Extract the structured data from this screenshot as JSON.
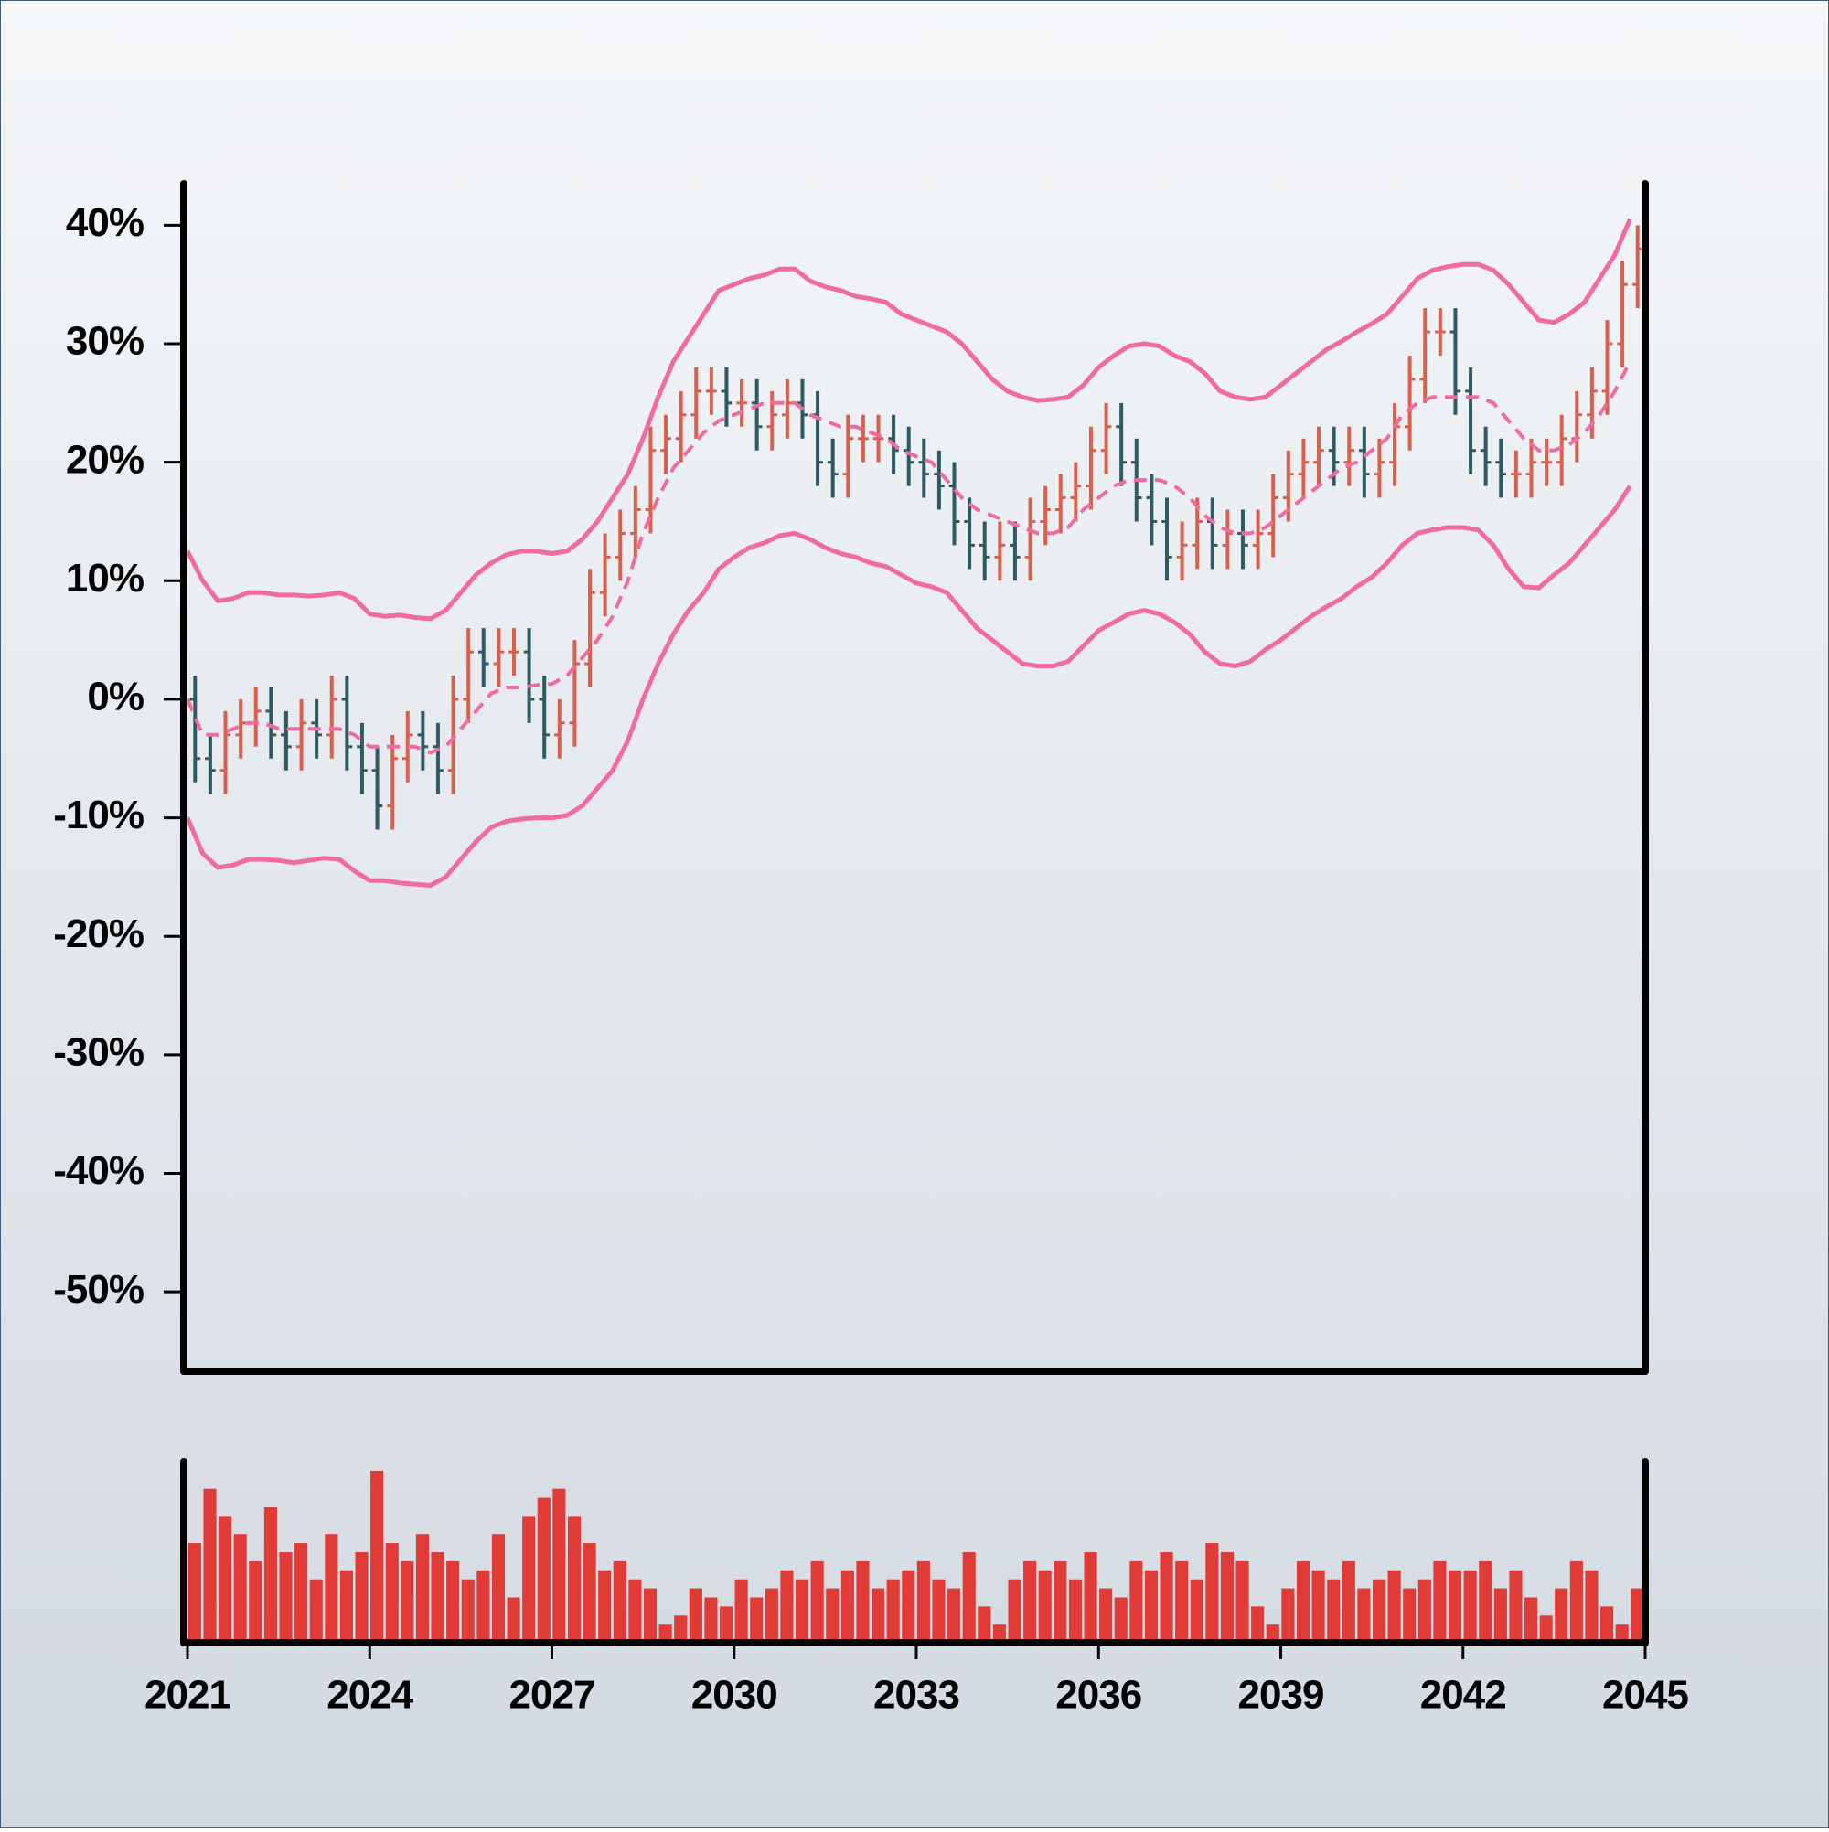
{
  "chart_data": {
    "type": "ohlc",
    "xlim": [
      2021,
      2045
    ],
    "xticks": [
      2021,
      2024,
      2027,
      2030,
      2033,
      2036,
      2039,
      2042,
      2045
    ],
    "ylim": [
      -56.7,
      43.5
    ],
    "yticks": [
      {
        "value": 40,
        "label": "40%"
      },
      {
        "value": 30,
        "label": "30%"
      },
      {
        "value": 20,
        "label": "20%"
      },
      {
        "value": 10,
        "label": "10%"
      },
      {
        "value": 0,
        "label": "0%"
      },
      {
        "value": -10,
        "label": "-10%"
      },
      {
        "value": -20,
        "label": "-20%"
      },
      {
        "value": -30,
        "label": "-30%"
      },
      {
        "value": -40,
        "label": "-40%"
      },
      {
        "value": -50,
        "label": "-50%"
      }
    ],
    "up_color": "#d9604f",
    "down_color": "#2f5a63",
    "band_color": "#f06ba0",
    "x": [
      2021,
      2021.25,
      2021.5,
      2021.75,
      2022,
      2022.25,
      2022.5,
      2022.75,
      2023,
      2023.25,
      2023.5,
      2023.75,
      2024,
      2024.25,
      2024.5,
      2024.75,
      2025,
      2025.25,
      2025.5,
      2025.75,
      2026,
      2026.25,
      2026.5,
      2026.75,
      2027,
      2027.25,
      2027.5,
      2027.75,
      2028,
      2028.25,
      2028.5,
      2028.75,
      2029,
      2029.25,
      2029.5,
      2029.75,
      2030,
      2030.25,
      2030.5,
      2030.75,
      2031,
      2031.25,
      2031.5,
      2031.75,
      2032,
      2032.25,
      2032.5,
      2032.75,
      2033,
      2033.25,
      2033.5,
      2033.75,
      2034,
      2034.25,
      2034.5,
      2034.75,
      2035,
      2035.25,
      2035.5,
      2035.75,
      2036,
      2036.25,
      2036.5,
      2036.75,
      2037,
      2037.25,
      2037.5,
      2037.75,
      2038,
      2038.25,
      2038.5,
      2038.75,
      2039,
      2039.25,
      2039.5,
      2039.75,
      2040,
      2040.25,
      2040.5,
      2040.75,
      2041,
      2041.25,
      2041.5,
      2041.75,
      2042,
      2042.25,
      2042.5,
      2042.75,
      2043,
      2043.25,
      2043.5,
      2043.75,
      2044,
      2044.25,
      2044.5,
      2044.75
    ],
    "open": [
      0,
      -5,
      -6,
      -3,
      -2,
      -1,
      -3,
      -4,
      -2,
      -3,
      0,
      -4,
      -6,
      -9,
      -5,
      -3,
      -4,
      -6,
      0,
      4,
      3,
      4,
      4,
      0,
      -3,
      -2,
      3,
      9,
      12,
      14,
      16,
      21,
      22,
      24,
      26,
      26,
      25,
      25,
      23,
      24,
      25,
      24,
      20,
      19,
      22,
      22,
      22,
      21,
      20,
      19,
      18,
      15,
      13,
      12,
      13,
      12,
      15,
      16,
      17,
      18,
      21,
      23,
      20,
      17,
      15,
      12,
      13,
      15,
      13,
      14,
      13,
      14,
      17,
      19,
      20,
      21,
      20,
      21,
      19,
      20,
      23,
      27,
      31,
      31,
      26,
      21,
      20,
      19,
      19,
      20,
      20,
      22,
      24,
      26,
      30,
      35
    ],
    "high": [
      2,
      -3,
      -1,
      0,
      1,
      1,
      -1,
      0,
      0,
      2,
      2,
      -2,
      -4,
      -3,
      -1,
      -1,
      -2,
      2,
      6,
      6,
      6,
      6,
      6,
      2,
      0,
      5,
      11,
      14,
      16,
      18,
      23,
      24,
      26,
      28,
      28,
      28,
      27,
      27,
      26,
      27,
      27,
      26,
      22,
      24,
      24,
      24,
      24,
      23,
      22,
      21,
      20,
      17,
      15,
      15,
      15,
      17,
      18,
      19,
      20,
      23,
      25,
      25,
      22,
      19,
      17,
      15,
      17,
      17,
      16,
      16,
      16,
      19,
      21,
      22,
      23,
      23,
      23,
      23,
      22,
      25,
      29,
      33,
      33,
      33,
      28,
      23,
      22,
      21,
      22,
      22,
      24,
      26,
      28,
      32,
      37,
      40
    ],
    "low": [
      -7,
      -8,
      -8,
      -5,
      -4,
      -5,
      -6,
      -6,
      -5,
      -5,
      -6,
      -8,
      -11,
      -11,
      -7,
      -6,
      -8,
      -8,
      -2,
      1,
      1,
      2,
      -2,
      -5,
      -5,
      -4,
      1,
      7,
      10,
      12,
      14,
      19,
      20,
      22,
      24,
      23,
      23,
      21,
      21,
      22,
      22,
      18,
      17,
      17,
      20,
      20,
      19,
      18,
      17,
      16,
      13,
      11,
      10,
      10,
      10,
      10,
      13,
      14,
      15,
      16,
      19,
      18,
      15,
      13,
      10,
      10,
      11,
      11,
      11,
      11,
      11,
      12,
      15,
      17,
      18,
      18,
      18,
      17,
      17,
      18,
      21,
      25,
      29,
      24,
      19,
      18,
      17,
      17,
      17,
      18,
      18,
      20,
      22,
      24,
      28,
      33
    ],
    "close": [
      -5,
      -6,
      -3,
      -2,
      -1,
      -3,
      -4,
      -2,
      -3,
      0,
      -4,
      -6,
      -9,
      -5,
      -3,
      -4,
      -6,
      0,
      4,
      3,
      4,
      4,
      0,
      -3,
      -2,
      3,
      9,
      12,
      14,
      16,
      21,
      22,
      24,
      26,
      26,
      25,
      25,
      23,
      24,
      25,
      24,
      20,
      19,
      22,
      22,
      22,
      21,
      20,
      19,
      18,
      15,
      13,
      12,
      13,
      12,
      15,
      16,
      17,
      18,
      21,
      23,
      20,
      17,
      15,
      12,
      13,
      15,
      13,
      14,
      13,
      14,
      17,
      19,
      20,
      21,
      20,
      21,
      19,
      20,
      23,
      27,
      31,
      31,
      26,
      21,
      20,
      19,
      19,
      20,
      20,
      22,
      24,
      26,
      30,
      35,
      38
    ],
    "band_upper": [
      12.5,
      10,
      8.3,
      8.5,
      9,
      9,
      8.8,
      8.8,
      8.7,
      8.8,
      9,
      8.5,
      7.2,
      7,
      7.1,
      6.9,
      6.8,
      7.5,
      9,
      10.5,
      11.5,
      12.2,
      12.5,
      12.5,
      12.3,
      12.5,
      13.5,
      15,
      17,
      19,
      22,
      25.5,
      28.5,
      30.5,
      32.5,
      34.5,
      35,
      35.5,
      35.8,
      36.3,
      36.3,
      35.3,
      34.8,
      34.5,
      34,
      33.8,
      33.5,
      32.5,
      32,
      31.5,
      31,
      30,
      28.5,
      27,
      26,
      25.5,
      25.2,
      25.3,
      25.5,
      26.5,
      28,
      29,
      29.8,
      30,
      29.8,
      29,
      28.5,
      27.5,
      26,
      25.5,
      25.3,
      25.5,
      26.5,
      27.5,
      28.5,
      29.5,
      30.2,
      31,
      31.7,
      32.5,
      34,
      35.5,
      36.2,
      36.5,
      36.7,
      36.7,
      36.2,
      35,
      33.5,
      32,
      31.8,
      32.5,
      33.5,
      35.5,
      37.5,
      40.5
    ],
    "band_middle": [
      0,
      -3,
      -3,
      -2.5,
      -2,
      -2,
      -2.5,
      -2.5,
      -2.5,
      -2.5,
      -2.5,
      -3,
      -4,
      -4,
      -4,
      -4,
      -4.5,
      -4,
      -2.5,
      -1,
      0.5,
      1,
      1,
      1.2,
      1.3,
      2,
      3.5,
      5,
      7,
      10,
      14,
      17,
      19.5,
      21,
      22.5,
      23.5,
      24,
      24.5,
      25,
      25,
      25,
      24,
      23.5,
      23,
      23,
      22.5,
      22,
      21,
      20.5,
      20,
      18.5,
      17,
      16,
      15.5,
      15,
      14.5,
      14,
      14,
      14.5,
      16,
      17,
      18,
      18.5,
      18.5,
      18.5,
      18,
      17,
      15.5,
      14.5,
      14,
      14,
      14.5,
      15.5,
      16.5,
      17.5,
      18.5,
      19.5,
      20,
      21,
      22,
      24,
      25,
      25.5,
      25.5,
      25.5,
      25.5,
      25,
      23.5,
      22,
      21,
      21,
      21.5,
      22.5,
      24,
      26,
      28.5
    ],
    "band_lower": [
      -10,
      -13,
      -14.2,
      -14,
      -13.5,
      -13.5,
      -13.6,
      -13.8,
      -13.6,
      -13.4,
      -13.5,
      -14.5,
      -15.3,
      -15.3,
      -15.5,
      -15.6,
      -15.7,
      -15,
      -13.5,
      -12,
      -10.8,
      -10.3,
      -10.1,
      -10,
      -10,
      -9.8,
      -9,
      -7.5,
      -6,
      -3.5,
      0,
      3,
      5.5,
      7.5,
      9,
      11,
      12,
      12.8,
      13.2,
      13.8,
      14,
      13.5,
      12.8,
      12.3,
      12,
      11.5,
      11.2,
      10.5,
      9.8,
      9.5,
      9,
      7.5,
      6,
      5,
      4,
      3,
      2.8,
      2.8,
      3.2,
      4.5,
      5.8,
      6.5,
      7.2,
      7.5,
      7.2,
      6.5,
      5.5,
      4,
      3,
      2.8,
      3.2,
      4.2,
      5,
      6,
      7,
      7.8,
      8.5,
      9.5,
      10.3,
      11.5,
      13,
      14,
      14.3,
      14.5,
      14.5,
      14.3,
      13,
      11,
      9.5,
      9.4,
      10.5,
      11.5,
      13,
      14.5,
      16,
      18
    ],
    "volume": {
      "color": "#e03b37",
      "ylim": [
        0,
        100
      ],
      "values": [
        55,
        85,
        70,
        60,
        45,
        75,
        50,
        55,
        35,
        60,
        40,
        50,
        95,
        55,
        45,
        60,
        50,
        45,
        35,
        40,
        60,
        25,
        70,
        80,
        85,
        70,
        55,
        40,
        45,
        35,
        30,
        10,
        15,
        30,
        25,
        20,
        35,
        25,
        30,
        40,
        35,
        45,
        30,
        40,
        45,
        30,
        35,
        40,
        45,
        35,
        30,
        50,
        20,
        10,
        35,
        45,
        40,
        45,
        35,
        50,
        30,
        25,
        45,
        40,
        50,
        45,
        35,
        55,
        50,
        45,
        20,
        10,
        30,
        45,
        40,
        35,
        45,
        30,
        35,
        40,
        30,
        35,
        45,
        40,
        40,
        45,
        30,
        40,
        25,
        15,
        30,
        45,
        40,
        20,
        10,
        30
      ]
    }
  }
}
